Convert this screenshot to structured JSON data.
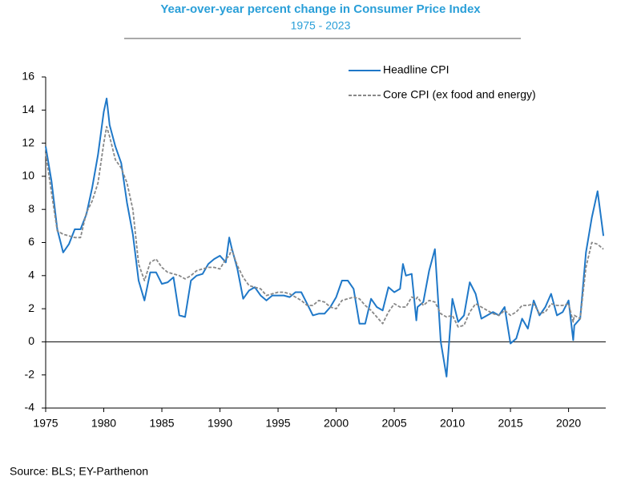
{
  "chart_data": {
    "type": "line",
    "title": "Year-over-year percent change in Consumer Price Index",
    "subtitle": "1975 - 2023",
    "source": "Source: BLS; EY-Parthenon",
    "x": [
      1975,
      1975.5,
      1976,
      1976.5,
      1977,
      1977.5,
      1978,
      1978.5,
      1979,
      1979.5,
      1980,
      1980.25,
      1980.5,
      1981,
      1981.5,
      1982,
      1982.5,
      1983,
      1983.5,
      1984,
      1984.5,
      1985,
      1985.5,
      1986,
      1986.5,
      1987,
      1987.5,
      1988,
      1988.5,
      1989,
      1989.5,
      1990,
      1990.5,
      1990.8,
      1991,
      1991.5,
      1992,
      1992.5,
      1993,
      1993.5,
      1994,
      1994.5,
      1995,
      1995.5,
      1996,
      1996.5,
      1997,
      1997.5,
      1998,
      1998.5,
      1999,
      1999.5,
      2000,
      2000.5,
      2001,
      2001.5,
      2002,
      2002.5,
      2003,
      2003.5,
      2004,
      2004.5,
      2005,
      2005.5,
      2005.75,
      2006,
      2006.5,
      2006.9,
      2007,
      2007.5,
      2008,
      2008.5,
      2009,
      2009.5,
      2010,
      2010.5,
      2011,
      2011.5,
      2012,
      2012.5,
      2013,
      2013.5,
      2014,
      2014.5,
      2015,
      2015.5,
      2016,
      2016.5,
      2017,
      2017.5,
      2018,
      2018.5,
      2019,
      2019.5,
      2020,
      2020.4,
      2020.5,
      2021,
      2021.5,
      2022,
      2022.5,
      2023
    ],
    "series": [
      {
        "name": "Headline CPI",
        "color": "#1f78c8",
        "dashed": false,
        "values": [
          11.8,
          9.7,
          6.8,
          5.4,
          5.9,
          6.8,
          6.8,
          7.7,
          9.3,
          11.3,
          13.9,
          14.7,
          13.1,
          11.8,
          10.8,
          8.4,
          6.5,
          3.7,
          2.5,
          4.2,
          4.2,
          3.5,
          3.6,
          3.9,
          1.6,
          1.5,
          3.7,
          4.0,
          4.1,
          4.7,
          5.0,
          5.2,
          4.8,
          6.3,
          5.7,
          4.4,
          2.6,
          3.1,
          3.3,
          2.8,
          2.5,
          2.8,
          2.8,
          2.8,
          2.7,
          3.0,
          3.0,
          2.3,
          1.6,
          1.7,
          1.7,
          2.1,
          2.7,
          3.7,
          3.7,
          3.2,
          1.1,
          1.1,
          2.6,
          2.1,
          1.9,
          3.3,
          3.0,
          3.2,
          4.7,
          4.0,
          4.1,
          1.3,
          2.1,
          2.4,
          4.3,
          5.6,
          0.0,
          -2.1,
          2.6,
          1.2,
          1.6,
          3.6,
          2.9,
          1.4,
          1.6,
          1.8,
          1.6,
          2.1,
          -0.1,
          0.2,
          1.4,
          0.8,
          2.5,
          1.6,
          2.1,
          2.9,
          1.6,
          1.8,
          2.5,
          0.1,
          1.0,
          1.4,
          5.4,
          7.5,
          9.1,
          6.4
        ]
      },
      {
        "name": "Core CPI (ex food and energy)",
        "color": "#888888",
        "dashed": true,
        "values": [
          11.4,
          9.0,
          6.7,
          6.5,
          6.4,
          6.3,
          6.3,
          7.8,
          8.5,
          9.6,
          12.0,
          13.0,
          12.4,
          11.0,
          10.5,
          9.6,
          8.0,
          4.7,
          3.7,
          4.8,
          5.0,
          4.5,
          4.2,
          4.1,
          4.0,
          3.8,
          4.0,
          4.3,
          4.4,
          4.5,
          4.5,
          4.4,
          5.0,
          5.2,
          5.6,
          4.6,
          3.9,
          3.4,
          3.3,
          3.2,
          2.8,
          2.9,
          3.0,
          3.0,
          2.9,
          2.7,
          2.5,
          2.2,
          2.2,
          2.5,
          2.4,
          2.1,
          2.0,
          2.5,
          2.6,
          2.7,
          2.6,
          2.2,
          1.9,
          1.5,
          1.1,
          1.8,
          2.3,
          2.1,
          2.1,
          2.1,
          2.7,
          2.6,
          2.7,
          2.2,
          2.5,
          2.4,
          1.7,
          1.5,
          1.6,
          0.9,
          1.0,
          1.8,
          2.3,
          2.1,
          1.9,
          1.7,
          1.6,
          1.9,
          1.6,
          1.8,
          2.2,
          2.2,
          2.3,
          1.7,
          1.8,
          2.3,
          2.2,
          2.2,
          2.3,
          1.2,
          1.6,
          1.4,
          4.5,
          6.0,
          5.9,
          5.6
        ]
      }
    ],
    "xlim": [
      1975,
      2023.2
    ],
    "xticks": [
      1975,
      1980,
      1985,
      1990,
      1995,
      2000,
      2005,
      2010,
      2015,
      2020
    ],
    "ylim": [
      -4,
      16
    ],
    "yticks": [
      -4,
      -2,
      0,
      2,
      4,
      6,
      8,
      10,
      12,
      14,
      16
    ],
    "grid": false,
    "legend": "top-right"
  }
}
